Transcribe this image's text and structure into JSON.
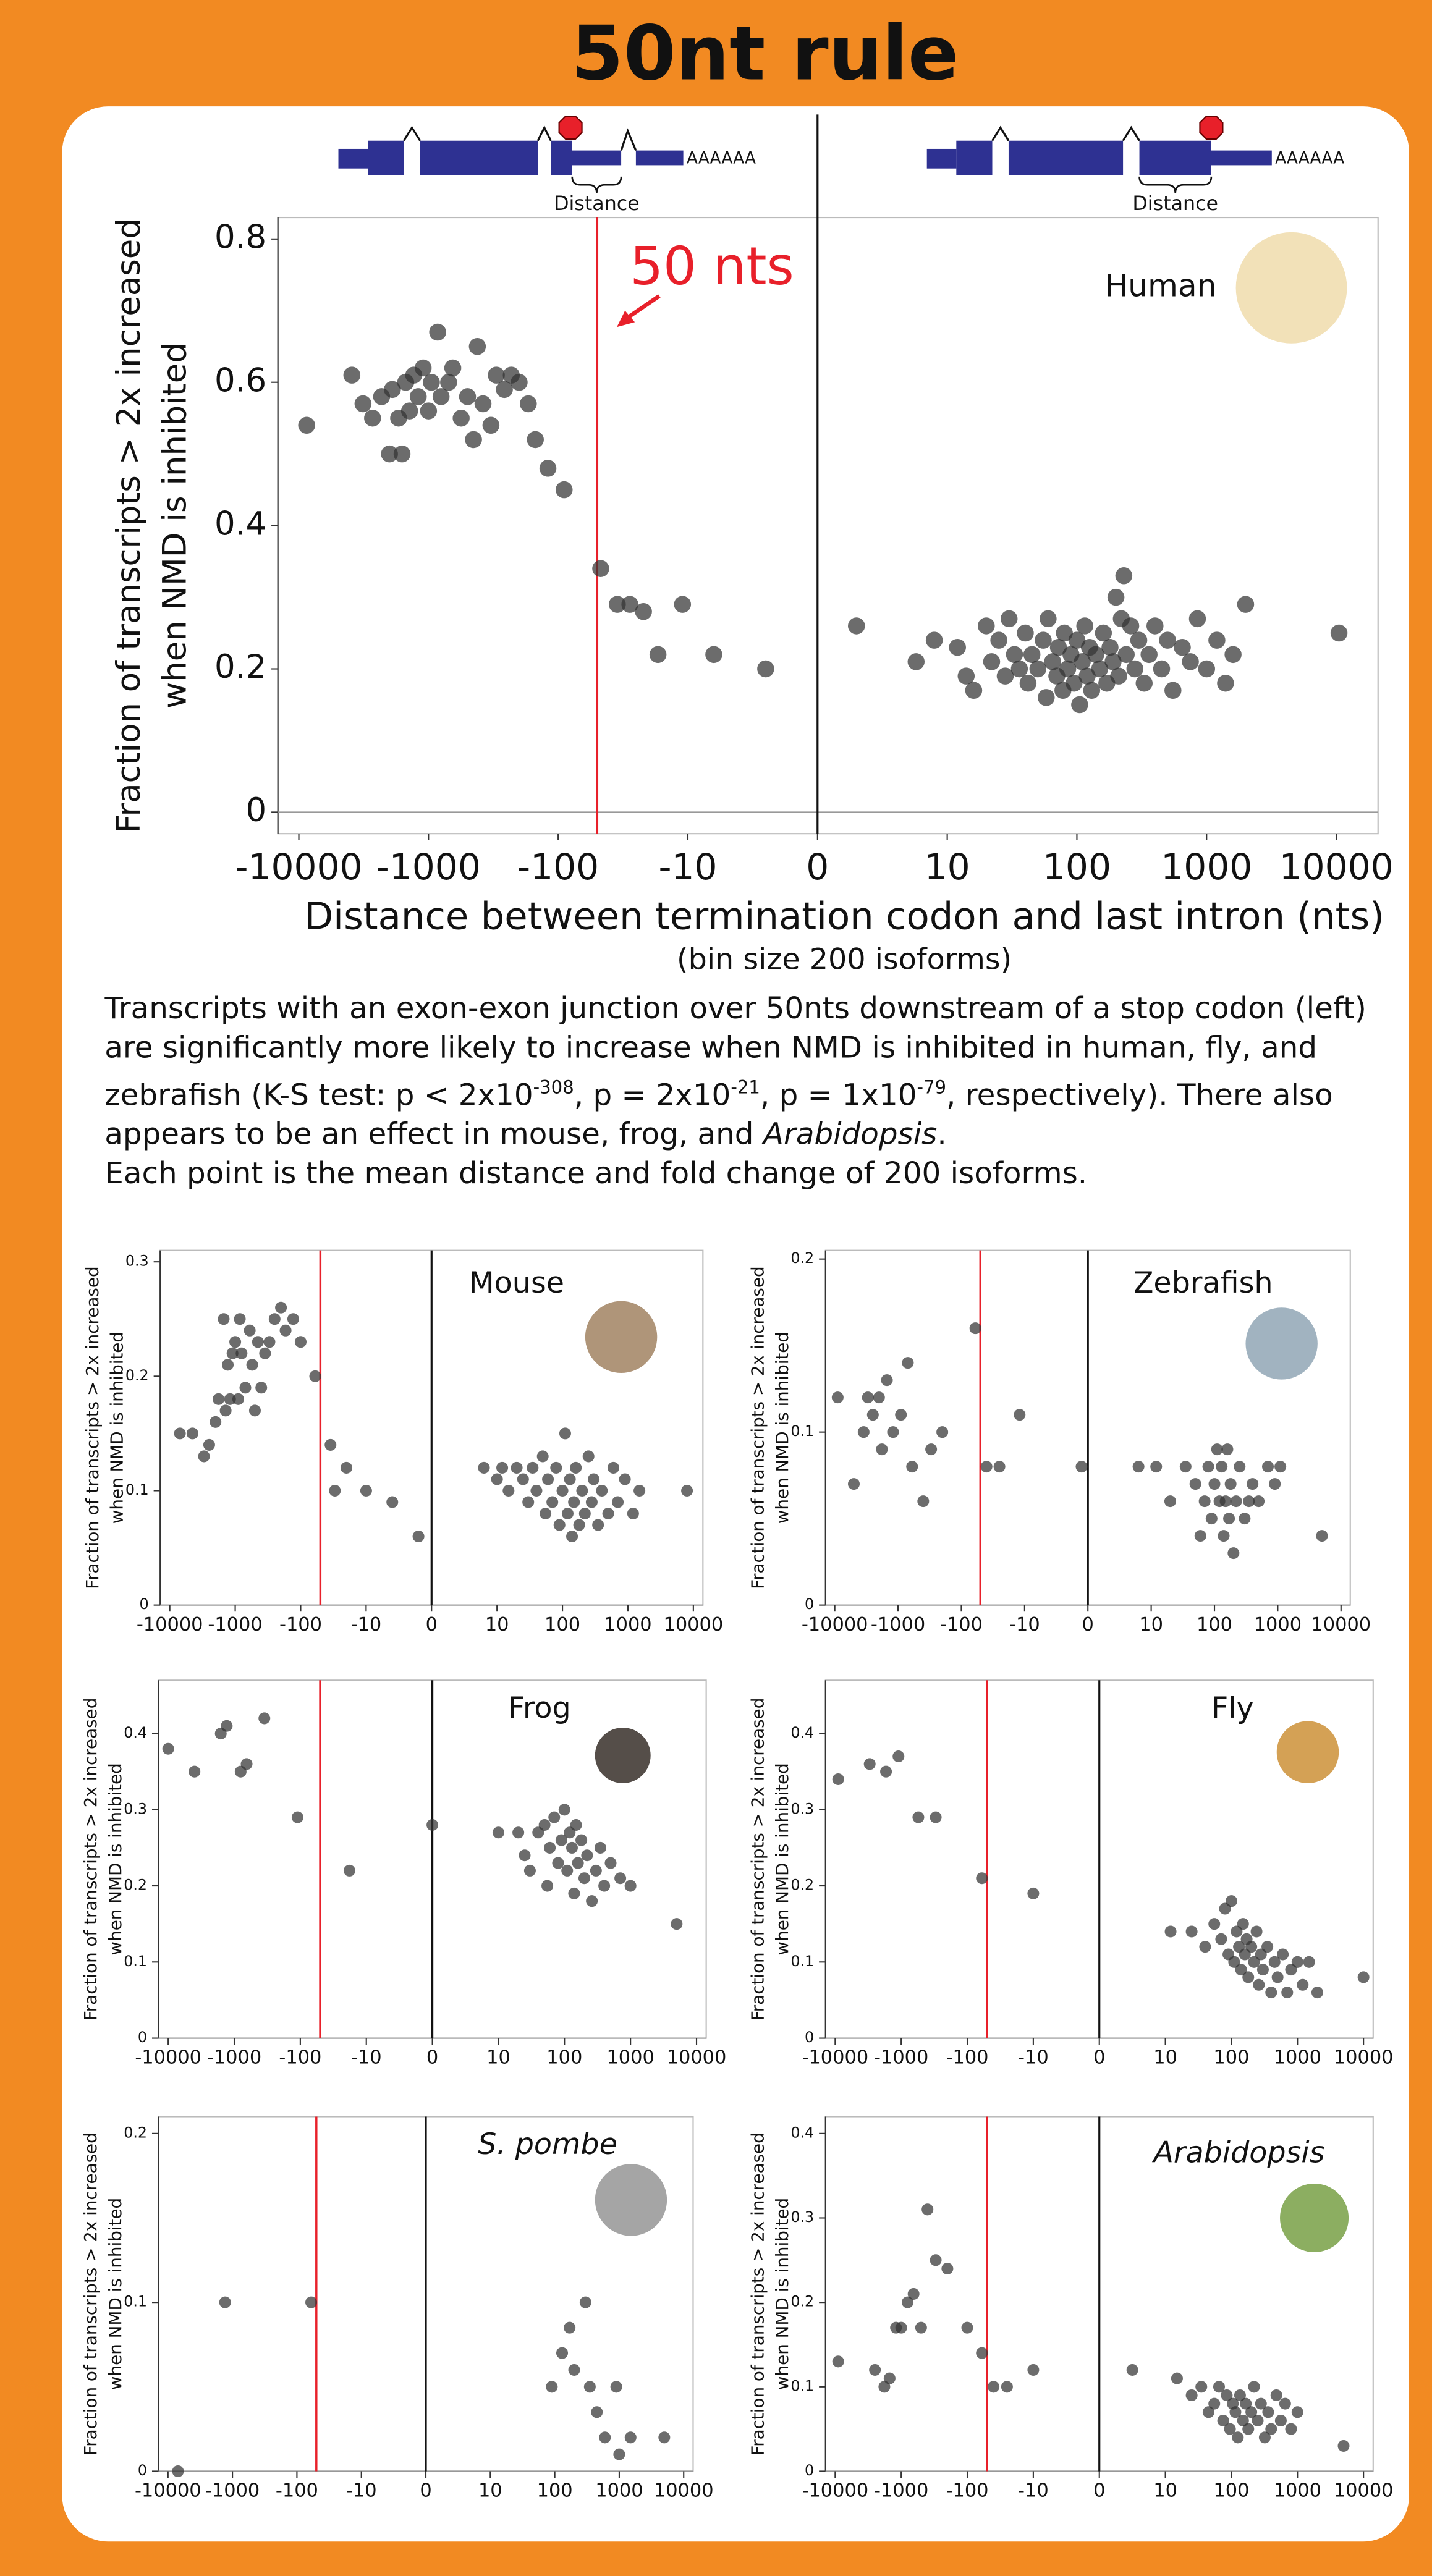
{
  "title": "50nt rule",
  "diagram": {
    "left": {
      "polya": "AAAAAA",
      "label": "Distance"
    },
    "right": {
      "polya": "AAAAAA",
      "label": "Distance"
    }
  },
  "caption": [
    "Transcripts with an exon-exon junction over 50nts downstream of a stop codon (left) are significantly more likely to increase when NMD is inhibited in human, fly, and zebrafish (K-S test: p < 2x10",
    "-308",
    ", p = 2x10",
    "-21",
    ", p = 1x10",
    "-79",
    ", respectively). There also appears to be an effect in mouse, frog, and ",
    "Arabidopsis",
    "."
  ],
  "note": "Each point is the mean distance and fold change of 200 isoforms.",
  "chart_data": [
    {
      "type": "scatter",
      "label": "Human",
      "label_italic": false,
      "annotation": "50 nts",
      "xlabel": "Distance between termination codon and last intron (nts)",
      "xlabel_note": "(bin size 200 isoforms)",
      "ylabel": [
        "Fraction of transcripts > 2x increased",
        "when NMD is inhibited"
      ],
      "xscale": "symlog",
      "threshold": -50,
      "threshold_color": "#e8202a",
      "color": "#333333",
      "xlim": [
        -14500,
        21000
      ],
      "ylim": [
        -0.03,
        0.83
      ],
      "xticks": [
        -10000,
        -1000,
        -100,
        -10,
        0,
        10,
        100,
        1000,
        10000
      ],
      "yticks": [
        0,
        0.2,
        0.4,
        0.6,
        0.8
      ],
      "x": [
        -8700,
        -3900,
        -3200,
        -2700,
        -2300,
        -2000,
        -1900,
        -1700,
        -1600,
        -1500,
        -1400,
        -1300,
        -1200,
        -1100,
        -1000,
        -950,
        -850,
        -800,
        -700,
        -650,
        -560,
        -500,
        -450,
        -420,
        -380,
        -330,
        -300,
        -260,
        -230,
        -200,
        -170,
        -150,
        -120,
        -90,
        -47,
        -35,
        -28,
        -22,
        -17,
        -11,
        -8,
        -4,
        3,
        7.6,
        9,
        12,
        14,
        16,
        20,
        22,
        25,
        28,
        30,
        33,
        36,
        40,
        42,
        45,
        50,
        55,
        58,
        60,
        65,
        70,
        72,
        78,
        80,
        85,
        90,
        95,
        100,
        105,
        110,
        115,
        120,
        125,
        130,
        140,
        150,
        160,
        170,
        180,
        190,
        200,
        210,
        220,
        230,
        240,
        260,
        280,
        300,
        330,
        360,
        400,
        450,
        500,
        550,
        650,
        750,
        850,
        1000,
        1200,
        1400,
        1600,
        2000,
        10500
      ],
      "values": [
        0.54,
        0.61,
        0.57,
        0.55,
        0.58,
        0.5,
        0.59,
        0.55,
        0.5,
        0.6,
        0.56,
        0.61,
        0.58,
        0.62,
        0.56,
        0.6,
        0.67,
        0.58,
        0.6,
        0.62,
        0.55,
        0.58,
        0.52,
        0.65,
        0.57,
        0.54,
        0.61,
        0.59,
        0.61,
        0.6,
        0.57,
        0.52,
        0.48,
        0.45,
        0.34,
        0.29,
        0.29,
        0.28,
        0.22,
        0.29,
        0.22,
        0.2,
        0.26,
        0.21,
        0.24,
        0.23,
        0.19,
        0.17,
        0.26,
        0.21,
        0.24,
        0.19,
        0.27,
        0.22,
        0.2,
        0.25,
        0.18,
        0.22,
        0.2,
        0.24,
        0.16,
        0.27,
        0.21,
        0.19,
        0.23,
        0.17,
        0.25,
        0.2,
        0.22,
        0.18,
        0.24,
        0.15,
        0.21,
        0.26,
        0.19,
        0.23,
        0.17,
        0.22,
        0.2,
        0.25,
        0.18,
        0.23,
        0.21,
        0.3,
        0.19,
        0.27,
        0.33,
        0.22,
        0.26,
        0.2,
        0.24,
        0.18,
        0.22,
        0.26,
        0.2,
        0.24,
        0.17,
        0.23,
        0.21,
        0.27,
        0.2,
        0.24,
        0.18,
        0.22,
        0.29,
        0.25
      ]
    },
    {
      "type": "scatter",
      "label": "Mouse",
      "label_italic": false,
      "ylabel": [
        "Fraction of transcripts > 2x increased",
        "when NMD is inhibited"
      ],
      "xscale": "symlog",
      "threshold": -50,
      "threshold_color": "#e8202a",
      "color": "#333333",
      "xlim": [
        -14000,
        14000
      ],
      "ylim": [
        0,
        0.31
      ],
      "xticks": [
        -10000,
        -1000,
        -100,
        -10,
        0,
        10,
        100,
        1000,
        10000
      ],
      "yticks": [
        0,
        0.1,
        0.2,
        0.3
      ],
      "x": [
        -7000,
        -4500,
        -3000,
        -2500,
        -2000,
        -1800,
        -1500,
        -1400,
        -1300,
        -1200,
        -1100,
        -1000,
        -900,
        -850,
        -800,
        -700,
        -600,
        -550,
        -500,
        -450,
        -400,
        -350,
        -300,
        -250,
        -200,
        -170,
        -130,
        -100,
        -60,
        -35,
        -30,
        -20,
        -10,
        -6,
        -2,
        8,
        10,
        12,
        15,
        20,
        25,
        30,
        35,
        40,
        50,
        55,
        60,
        70,
        80,
        90,
        100,
        110,
        120,
        130,
        140,
        150,
        160,
        180,
        200,
        220,
        250,
        280,
        300,
        350,
        400,
        500,
        600,
        700,
        900,
        1200,
        1500,
        8000
      ],
      "values": [
        0.15,
        0.15,
        0.13,
        0.14,
        0.16,
        0.18,
        0.25,
        0.17,
        0.21,
        0.18,
        0.22,
        0.23,
        0.18,
        0.25,
        0.22,
        0.19,
        0.24,
        0.21,
        0.17,
        0.23,
        0.19,
        0.22,
        0.23,
        0.25,
        0.26,
        0.24,
        0.25,
        0.23,
        0.2,
        0.14,
        0.1,
        0.12,
        0.1,
        0.09,
        0.06,
        0.12,
        0.11,
        0.12,
        0.1,
        0.12,
        0.11,
        0.09,
        0.12,
        0.1,
        0.13,
        0.08,
        0.11,
        0.09,
        0.12,
        0.07,
        0.1,
        0.15,
        0.08,
        0.11,
        0.06,
        0.09,
        0.12,
        0.07,
        0.1,
        0.08,
        0.13,
        0.09,
        0.11,
        0.07,
        0.1,
        0.08,
        0.12,
        0.09,
        0.11,
        0.08,
        0.1,
        0.1
      ]
    },
    {
      "type": "scatter",
      "label": "Zebrafish",
      "label_italic": false,
      "ylabel": [
        "Fraction of transcripts > 2x increased",
        "when NMD is inhibited"
      ],
      "xscale": "symlog",
      "threshold": -50,
      "threshold_color": "#e8202a",
      "color": "#333333",
      "xlim": [
        -14000,
        14000
      ],
      "ylim": [
        0,
        0.205
      ],
      "xticks": [
        -10000,
        -1000,
        -100,
        -10,
        0,
        10,
        100,
        1000,
        10000
      ],
      "yticks": [
        0,
        0.1,
        0.2
      ],
      "x": [
        -9000,
        -5000,
        -3500,
        -3000,
        -2500,
        -2000,
        -1800,
        -1500,
        -1200,
        -900,
        -700,
        -600,
        -400,
        -300,
        -200,
        -60,
        -40,
        -25,
        -12,
        -1,
        8,
        12,
        20,
        35,
        50,
        60,
        70,
        80,
        90,
        100,
        110,
        120,
        130,
        140,
        150,
        160,
        170,
        180,
        200,
        220,
        250,
        300,
        350,
        400,
        500,
        700,
        900,
        1100,
        5000
      ],
      "values": [
        0.12,
        0.07,
        0.1,
        0.12,
        0.11,
        0.12,
        0.09,
        0.13,
        0.1,
        0.11,
        0.14,
        0.08,
        0.06,
        0.09,
        0.1,
        0.16,
        0.08,
        0.08,
        0.11,
        0.08,
        0.08,
        0.08,
        0.06,
        0.08,
        0.07,
        0.04,
        0.06,
        0.08,
        0.05,
        0.07,
        0.09,
        0.06,
        0.08,
        0.04,
        0.06,
        0.09,
        0.05,
        0.07,
        0.03,
        0.06,
        0.08,
        0.05,
        0.06,
        0.07,
        0.06,
        0.08,
        0.07,
        0.08,
        0.04
      ]
    },
    {
      "type": "scatter",
      "label": "Frog",
      "label_italic": false,
      "ylabel": [
        "Fraction of transcripts > 2x increased",
        "when NMD is inhibited"
      ],
      "xscale": "symlog",
      "threshold": -50,
      "threshold_color": "#e8202a",
      "color": "#333333",
      "xlim": [
        -14000,
        14000
      ],
      "ylim": [
        0,
        0.47
      ],
      "xticks": [
        -10000,
        -1000,
        -100,
        -10,
        0,
        10,
        100,
        1000,
        10000
      ],
      "yticks": [
        0,
        0.1,
        0.2,
        0.3,
        0.4
      ],
      "x": [
        -10000,
        -4000,
        -1600,
        -1300,
        -800,
        -650,
        -350,
        -110,
        -18,
        0,
        10,
        20,
        25,
        30,
        40,
        50,
        55,
        60,
        70,
        80,
        90,
        100,
        110,
        120,
        130,
        140,
        150,
        160,
        180,
        200,
        220,
        260,
        300,
        350,
        400,
        500,
        700,
        1000,
        5000
      ],
      "values": [
        0.38,
        0.35,
        0.4,
        0.41,
        0.35,
        0.36,
        0.42,
        0.29,
        0.22,
        0.28,
        0.27,
        0.27,
        0.24,
        0.22,
        0.27,
        0.28,
        0.2,
        0.25,
        0.29,
        0.23,
        0.26,
        0.3,
        0.22,
        0.27,
        0.25,
        0.19,
        0.28,
        0.23,
        0.26,
        0.21,
        0.24,
        0.18,
        0.22,
        0.25,
        0.2,
        0.23,
        0.21,
        0.2,
        0.15
      ]
    },
    {
      "type": "scatter",
      "label": "Fly",
      "label_italic": false,
      "ylabel": [
        "Fraction of transcripts > 2x increased",
        "when NMD is inhibited"
      ],
      "xscale": "symlog",
      "threshold": -50,
      "threshold_color": "#e8202a",
      "color": "#333333",
      "xlim": [
        -14000,
        14000
      ],
      "ylim": [
        0,
        0.47
      ],
      "xticks": [
        -10000,
        -1000,
        -100,
        -10,
        0,
        10,
        100,
        1000,
        10000
      ],
      "yticks": [
        0,
        0.1,
        0.2,
        0.3,
        0.4
      ],
      "x": [
        -9000,
        -3000,
        -1700,
        -1100,
        -550,
        -300,
        -60,
        -10,
        12,
        25,
        40,
        55,
        70,
        80,
        90,
        100,
        110,
        120,
        130,
        140,
        150,
        160,
        170,
        180,
        200,
        220,
        240,
        260,
        280,
        300,
        350,
        400,
        450,
        500,
        600,
        700,
        800,
        1000,
        1200,
        1500,
        2000,
        10000
      ],
      "values": [
        0.34,
        0.36,
        0.35,
        0.37,
        0.29,
        0.29,
        0.21,
        0.19,
        0.14,
        0.14,
        0.12,
        0.15,
        0.13,
        0.17,
        0.11,
        0.18,
        0.1,
        0.14,
        0.12,
        0.09,
        0.15,
        0.11,
        0.13,
        0.08,
        0.12,
        0.1,
        0.14,
        0.07,
        0.11,
        0.09,
        0.12,
        0.06,
        0.1,
        0.08,
        0.11,
        0.06,
        0.09,
        0.1,
        0.07,
        0.1,
        0.06,
        0.08
      ]
    },
    {
      "type": "scatter",
      "label": "S. pombe",
      "label_italic": true,
      "ylabel": [
        "Fraction of transcripts > 2x increased",
        "when NMD is inhibited"
      ],
      "xscale": "symlog",
      "threshold": -50,
      "threshold_color": "#e8202a",
      "color": "#333333",
      "xlim": [
        -14000,
        14000
      ],
      "ylim": [
        0,
        0.21
      ],
      "xticks": [
        -10000,
        -1000,
        -100,
        -10,
        0,
        10,
        100,
        1000,
        10000
      ],
      "yticks": [
        0,
        0.1,
        0.2
      ],
      "x": [
        -7000,
        -1300,
        -60,
        90,
        130,
        170,
        200,
        300,
        350,
        450,
        600,
        900,
        1000,
        1500,
        5000
      ],
      "values": [
        0,
        0.1,
        0.1,
        0.05,
        0.07,
        0.085,
        0.06,
        0.1,
        0.05,
        0.035,
        0.02,
        0.05,
        0.01,
        0.02,
        0.02
      ]
    },
    {
      "type": "scatter",
      "label": "Arabidopsis",
      "label_italic": true,
      "ylabel": [
        "Fraction of transcripts > 2x increased",
        "when NMD is inhibited"
      ],
      "xscale": "symlog",
      "threshold": -50,
      "threshold_color": "#e8202a",
      "color": "#333333",
      "xlim": [
        -14000,
        14000
      ],
      "ylim": [
        0,
        0.42
      ],
      "xticks": [
        -10000,
        -1000,
        -100,
        -10,
        0,
        10,
        100,
        1000,
        10000
      ],
      "yticks": [
        0,
        0.1,
        0.2,
        0.3,
        0.4
      ],
      "x": [
        -9000,
        -2500,
        -1800,
        -1500,
        -1200,
        -1000,
        -800,
        -650,
        -500,
        -400,
        -300,
        -200,
        -100,
        -60,
        -40,
        -25,
        -10,
        5,
        15,
        25,
        35,
        45,
        55,
        65,
        75,
        85,
        95,
        105,
        115,
        125,
        135,
        150,
        165,
        180,
        200,
        220,
        250,
        280,
        320,
        360,
        400,
        480,
        560,
        650,
        800,
        1000,
        5000
      ],
      "values": [
        0.13,
        0.12,
        0.1,
        0.11,
        0.17,
        0.17,
        0.2,
        0.21,
        0.17,
        0.31,
        0.25,
        0.24,
        0.17,
        0.14,
        0.1,
        0.1,
        0.12,
        0.12,
        0.11,
        0.09,
        0.1,
        0.07,
        0.08,
        0.1,
        0.06,
        0.09,
        0.05,
        0.08,
        0.07,
        0.04,
        0.09,
        0.06,
        0.08,
        0.05,
        0.07,
        0.1,
        0.06,
        0.08,
        0.04,
        0.07,
        0.05,
        0.09,
        0.06,
        0.08,
        0.05,
        0.07,
        0.03
      ]
    }
  ]
}
